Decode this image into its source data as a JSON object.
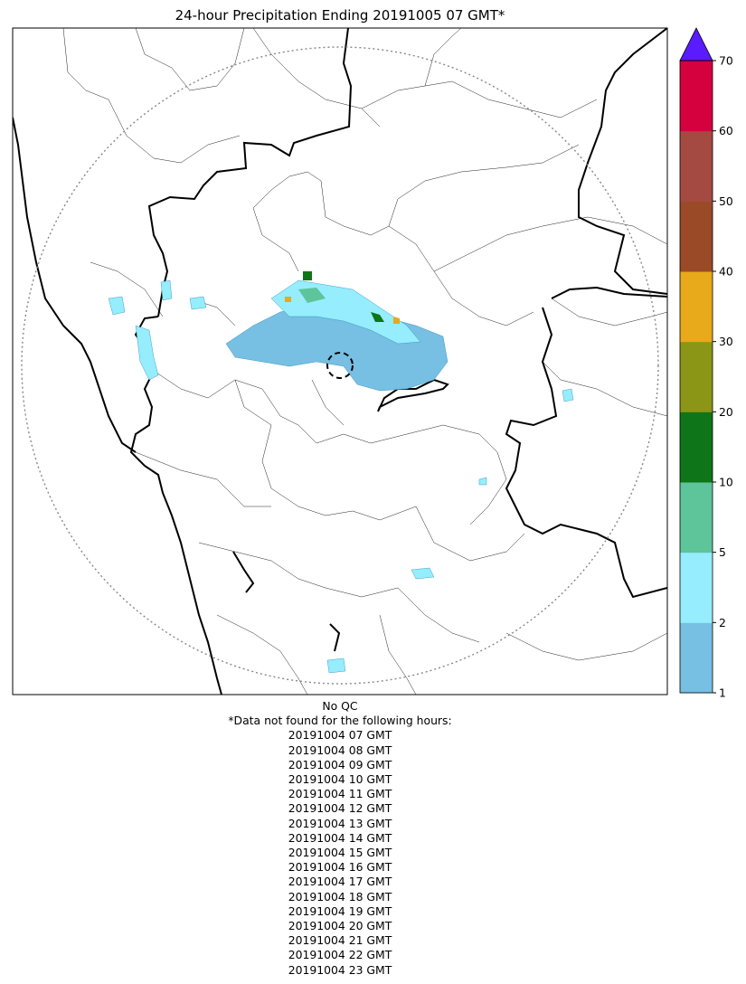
{
  "title": "24-hour Precipitation Ending 20191005 07 GMT*",
  "colorbar": {
    "ticks": [
      "1",
      "2",
      "5",
      "10",
      "20",
      "30",
      "40",
      "50",
      "60",
      "70"
    ],
    "levels": [
      {
        "from": 1,
        "to": 2,
        "color": "#77bfe3"
      },
      {
        "from": 2,
        "to": 5,
        "color": "#95edfd"
      },
      {
        "from": 5,
        "to": 10,
        "color": "#5ec49a"
      },
      {
        "from": 10,
        "to": 20,
        "color": "#0e7518"
      },
      {
        "from": 20,
        "to": 30,
        "color": "#8c9616"
      },
      {
        "from": 30,
        "to": 40,
        "color": "#e8a91a"
      },
      {
        "from": 40,
        "to": 50,
        "color": "#9b4a28"
      },
      {
        "from": 50,
        "to": 60,
        "color": "#a54a42"
      },
      {
        "from": 60,
        "to": 70,
        "color": "#d5003e"
      }
    ],
    "over_color": "#5a1bff"
  },
  "notes": {
    "qc": "No QC",
    "missing_header": "*Data not found for the following hours:",
    "missing_hours": [
      "20191004 07 GMT",
      "20191004 08 GMT",
      "20191004 09 GMT",
      "20191004 10 GMT",
      "20191004 11 GMT",
      "20191004 12 GMT",
      "20191004 13 GMT",
      "20191004 14 GMT",
      "20191004 15 GMT",
      "20191004 16 GMT",
      "20191004 17 GMT",
      "20191004 18 GMT",
      "20191004 19 GMT",
      "20191004 20 GMT",
      "20191004 21 GMT",
      "20191004 22 GMT",
      "20191004 23 GMT"
    ]
  }
}
